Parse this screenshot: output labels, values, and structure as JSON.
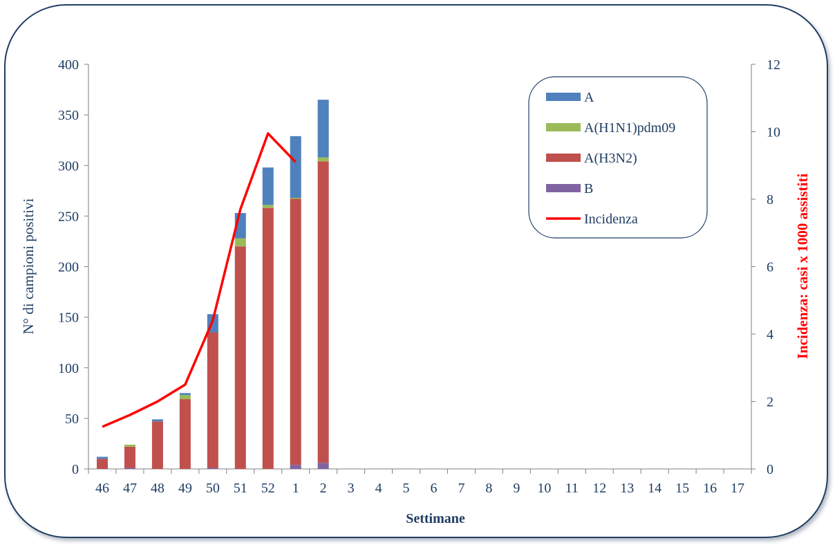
{
  "chart_data": {
    "type": "bar",
    "stacked": true,
    "categories": [
      "46",
      "47",
      "48",
      "49",
      "50",
      "51",
      "52",
      "1",
      "2",
      "3",
      "4",
      "5",
      "6",
      "7",
      "8",
      "9",
      "10",
      "11",
      "12",
      "13",
      "14",
      "15",
      "16",
      "17"
    ],
    "series": [
      {
        "name": "B",
        "color": "#8064a2",
        "values": [
          0,
          1,
          0,
          0,
          1,
          0,
          0,
          4,
          6,
          0,
          0,
          0,
          0,
          0,
          0,
          0,
          0,
          0,
          0,
          0,
          0,
          0,
          0,
          0
        ]
      },
      {
        "name": "A(H3N2)",
        "color": "#c0504d",
        "values": [
          10,
          21,
          47,
          69,
          134,
          220,
          258,
          263,
          298,
          0,
          0,
          0,
          0,
          0,
          0,
          0,
          0,
          0,
          0,
          0,
          0,
          0,
          0,
          0
        ]
      },
      {
        "name": "A(H1N1)pdm09",
        "color": "#9bbb59",
        "values": [
          0,
          2,
          0,
          4,
          0,
          8,
          3,
          1,
          4,
          0,
          0,
          0,
          0,
          0,
          0,
          0,
          0,
          0,
          0,
          0,
          0,
          0,
          0,
          0
        ]
      },
      {
        "name": "A",
        "color": "#4f81bd",
        "values": [
          2,
          0,
          2,
          2,
          18,
          25,
          37,
          61,
          57,
          0,
          0,
          0,
          0,
          0,
          0,
          0,
          0,
          0,
          0,
          0,
          0,
          0,
          0,
          0
        ]
      }
    ],
    "line": {
      "name": "Incidenza",
      "color": "#ff0000",
      "axis": "right",
      "values": [
        1.25,
        1.6,
        2.0,
        2.5,
        4.4,
        7.7,
        9.95,
        9.1
      ]
    },
    "y_left": {
      "label": "N° di campioni positivi",
      "ylim": [
        0,
        400
      ],
      "ticks": [
        0,
        50,
        100,
        150,
        200,
        250,
        300,
        350,
        400
      ]
    },
    "y_right": {
      "label": "Incidenza: casi x 1000 assistiti",
      "ylim": [
        0,
        12
      ],
      "ticks": [
        0,
        2,
        4,
        6,
        8,
        10,
        12
      ]
    },
    "xlabel": "Settimane",
    "legend": {
      "position": "top-right",
      "entries": [
        "A",
        "A(H1N1)pdm09",
        "A(H3N2)",
        "B",
        "Incidenza"
      ]
    },
    "grid": false
  },
  "colors": {
    "axis": "#7f7f7f",
    "text": "#1f3d63",
    "frame": "#1f3d63"
  }
}
